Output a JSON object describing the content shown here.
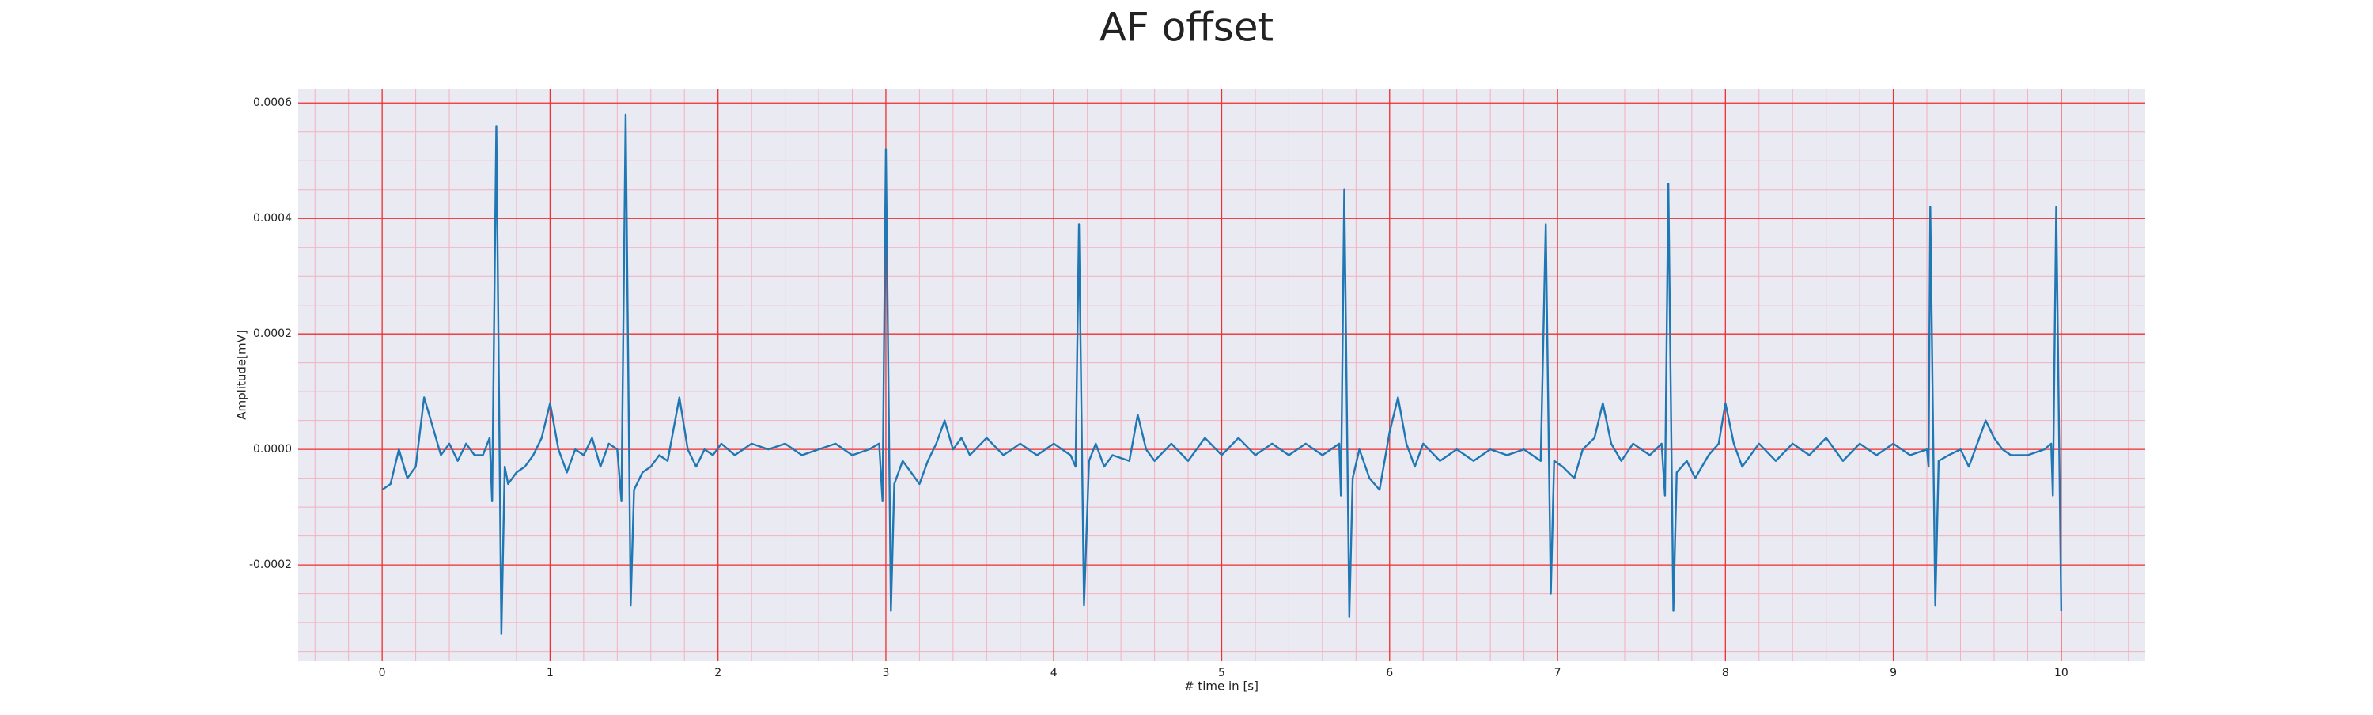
{
  "chart_data": {
    "type": "line",
    "title": "AF offset",
    "xlabel": "# time in [s]",
    "ylabel": "Amplitude[mV]",
    "color": "#1f77b4",
    "background": "#eaeaf2",
    "grid": true,
    "grid_color": "#f03030",
    "minor_grid_color": "#f4b0c0",
    "minor_grid": {
      "x_step": 0.2,
      "y_step": 5e-05
    },
    "xlim": [
      -0.5,
      10.5
    ],
    "xticks": [
      0,
      1,
      2,
      3,
      4,
      5,
      6,
      7,
      8,
      9,
      10
    ],
    "ylim": [
      -0.000367,
      0.000625
    ],
    "yticks": [
      -0.0002,
      {
        "value": 0,
        "label": "0.0000"
      },
      0.0002,
      0.0004,
      0.0006
    ],
    "x": [
      0,
      0.05,
      0.1,
      0.15,
      0.2,
      0.25,
      0.3,
      0.35,
      0.4,
      0.45,
      0.5,
      0.55,
      0.6,
      0.64,
      0.655,
      0.68,
      0.71,
      0.73,
      0.75,
      0.8,
      0.85,
      0.9,
      0.95,
      1.0,
      1.05,
      1.1,
      1.15,
      1.2,
      1.25,
      1.3,
      1.35,
      1.4,
      1.425,
      1.45,
      1.48,
      1.5,
      1.55,
      1.6,
      1.65,
      1.7,
      1.77,
      1.82,
      1.87,
      1.92,
      1.97,
      2.02,
      2.1,
      2.2,
      2.3,
      2.4,
      2.5,
      2.6,
      2.7,
      2.8,
      2.9,
      2.96,
      2.98,
      3.0,
      3.03,
      3.05,
      3.1,
      3.15,
      3.2,
      3.25,
      3.3,
      3.35,
      3.4,
      3.45,
      3.5,
      3.6,
      3.7,
      3.8,
      3.9,
      4.0,
      4.1,
      4.13,
      4.15,
      4.18,
      4.21,
      4.25,
      4.3,
      4.35,
      4.45,
      4.5,
      4.55,
      4.6,
      4.7,
      4.8,
      4.9,
      5.0,
      5.1,
      5.2,
      5.3,
      5.4,
      5.5,
      5.6,
      5.7,
      5.71,
      5.73,
      5.76,
      5.78,
      5.82,
      5.88,
      5.94,
      6.0,
      6.05,
      6.1,
      6.15,
      6.2,
      6.3,
      6.4,
      6.5,
      6.6,
      6.7,
      6.8,
      6.9,
      6.93,
      6.96,
      6.98,
      7.03,
      7.1,
      7.15,
      7.22,
      7.27,
      7.32,
      7.38,
      7.45,
      7.55,
      7.62,
      7.64,
      7.66,
      7.69,
      7.71,
      7.77,
      7.82,
      7.9,
      7.96,
      8.0,
      8.05,
      8.1,
      8.2,
      8.3,
      8.4,
      8.5,
      8.6,
      8.7,
      8.8,
      8.9,
      9.0,
      9.1,
      9.2,
      9.21,
      9.22,
      9.25,
      9.27,
      9.33,
      9.4,
      9.45,
      9.55,
      9.6,
      9.65,
      9.7,
      9.8,
      9.9,
      9.94,
      9.95,
      9.97,
      10.0
    ],
    "values": [
      -7e-05,
      -6e-05,
      0.0,
      -5e-05,
      -3e-05,
      9e-05,
      4e-05,
      -1e-05,
      1e-05,
      -2e-05,
      1e-05,
      -1e-05,
      -1e-05,
      2e-05,
      -9e-05,
      0.00056,
      -0.00032,
      -3e-05,
      -6e-05,
      -4e-05,
      -3e-05,
      -1e-05,
      2e-05,
      8e-05,
      0.0,
      -4e-05,
      0.0,
      -1e-05,
      2e-05,
      -3e-05,
      1e-05,
      0.0,
      -9e-05,
      0.00058,
      -0.00027,
      -7e-05,
      -4e-05,
      -3e-05,
      -1e-05,
      -2e-05,
      9e-05,
      0.0,
      -3e-05,
      0.0,
      -1e-05,
      1e-05,
      -1e-05,
      1e-05,
      0.0,
      1e-05,
      -1e-05,
      0.0,
      1e-05,
      -1e-05,
      0.0,
      1e-05,
      -9e-05,
      0.00052,
      -0.00028,
      -6e-05,
      -2e-05,
      -4e-05,
      -6e-05,
      -2e-05,
      1e-05,
      5e-05,
      0.0,
      2e-05,
      -1e-05,
      2e-05,
      -1e-05,
      1e-05,
      -1e-05,
      1e-05,
      -1e-05,
      -3e-05,
      0.00039,
      -0.00027,
      -2e-05,
      1e-05,
      -3e-05,
      -1e-05,
      -2e-05,
      6e-05,
      0.0,
      -2e-05,
      1e-05,
      -2e-05,
      2e-05,
      -1e-05,
      2e-05,
      -1e-05,
      1e-05,
      -1e-05,
      1e-05,
      -1e-05,
      1e-05,
      -8e-05,
      0.00045,
      -0.00029,
      -5e-05,
      0.0,
      -5e-05,
      -7e-05,
      3e-05,
      9e-05,
      1e-05,
      -3e-05,
      1e-05,
      -2e-05,
      0.0,
      -2e-05,
      0.0,
      -1e-05,
      0.0,
      -2e-05,
      0.00039,
      -0.00025,
      -2e-05,
      -3e-05,
      -5e-05,
      0.0,
      2e-05,
      8e-05,
      1e-05,
      -2e-05,
      1e-05,
      -1e-05,
      1e-05,
      -8e-05,
      0.00046,
      -0.00028,
      -4e-05,
      -2e-05,
      -5e-05,
      -1e-05,
      1e-05,
      8e-05,
      1e-05,
      -3e-05,
      1e-05,
      -2e-05,
      1e-05,
      -1e-05,
      2e-05,
      -2e-05,
      1e-05,
      -1e-05,
      1e-05,
      -1e-05,
      0.0,
      -3e-05,
      0.00042,
      -0.00027,
      -2e-05,
      -1e-05,
      0.0,
      -3e-05,
      5e-05,
      2e-05,
      0.0,
      -1e-05,
      -1e-05,
      0.0,
      1e-05,
      -8e-05,
      0.00042,
      -0.00028
    ]
  }
}
